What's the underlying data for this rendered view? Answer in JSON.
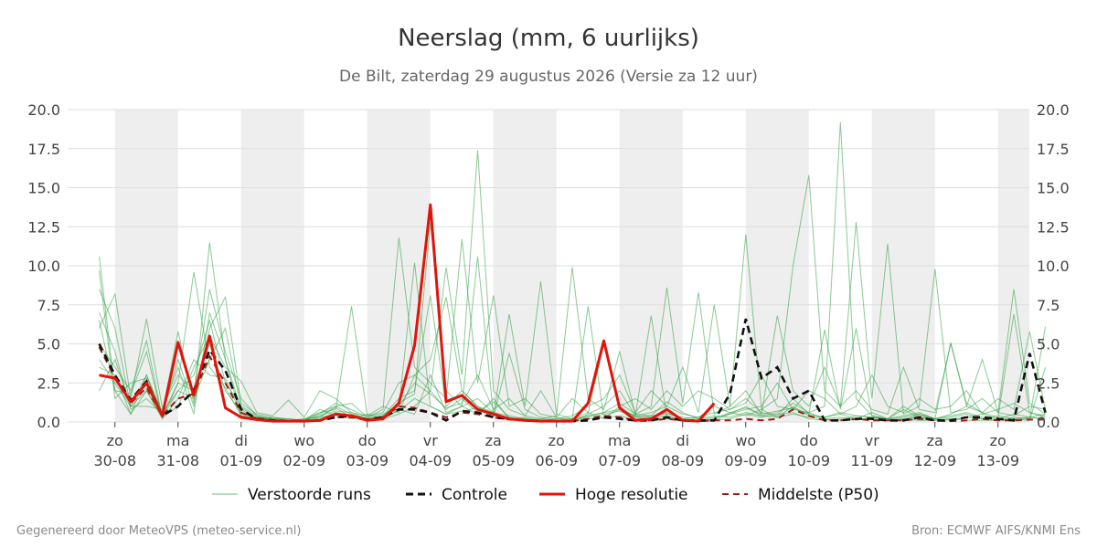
{
  "chart_data": {
    "type": "line",
    "title": "Neerslag (mm, 6 uurlijks)",
    "subtitle": "De Bilt, zaterdag 29 augustus 2026 (Versie za 12 uur)",
    "ylim": [
      0,
      20
    ],
    "yticks": [
      "0.0",
      "2.5",
      "5.0",
      "7.5",
      "10.0",
      "12.5",
      "15.0",
      "17.5",
      "20.0"
    ],
    "xlim": [
      0,
      59.5
    ],
    "step_hours": 6,
    "x_ticks": [
      {
        "day": "zo",
        "date": "30-08"
      },
      {
        "day": "ma",
        "date": "31-08"
      },
      {
        "day": "di",
        "date": "01-09"
      },
      {
        "day": "wo",
        "date": "02-09"
      },
      {
        "day": "do",
        "date": "03-09"
      },
      {
        "day": "vr",
        "date": "04-09"
      },
      {
        "day": "za",
        "date": "05-09"
      },
      {
        "day": "zo",
        "date": "06-09"
      },
      {
        "day": "ma",
        "date": "07-09"
      },
      {
        "day": "di",
        "date": "08-09"
      },
      {
        "day": "wo",
        "date": "09-09"
      },
      {
        "day": "do",
        "date": "10-09"
      },
      {
        "day": "vr",
        "date": "11-09"
      },
      {
        "day": "za",
        "date": "12-09"
      },
      {
        "day": "zo",
        "date": "13-09"
      }
    ],
    "grid": true,
    "legend_position": "bottom",
    "legend": {
      "ensemble": "Verstoorde runs",
      "control": "Controle",
      "hires": "Hoge resolutie",
      "median": "Middelste (P50)"
    },
    "colors": {
      "ensemble": "#2e9e3f",
      "control": "#111111",
      "hires": "#e3120b",
      "median": "#a11b16",
      "night_band": "#eeeeee",
      "grid": "#dddddd"
    },
    "series": {
      "hires": [
        3.0,
        2.8,
        1.3,
        2.5,
        0.4,
        5.1,
        1.7,
        5.5,
        0.9,
        0.3,
        0.15,
        0.05,
        0.05,
        0.05,
        0.1,
        0.5,
        0.4,
        0.1,
        0.2,
        1.2,
        4.9,
        13.9,
        1.3,
        1.7,
        0.8,
        0.5,
        0.2,
        0.1,
        0.05,
        0.05,
        0.05,
        1.2,
        5.2,
        0.9,
        0.1,
        0.2,
        0.8,
        0.1,
        0.05,
        1.2
      ],
      "control": [
        5.0,
        3.0,
        1.4,
        2.6,
        0.4,
        1.0,
        2.0,
        4.6,
        3.3,
        0.8,
        0.2,
        0.1,
        0.05,
        0.05,
        0.1,
        0.3,
        0.4,
        0.15,
        0.3,
        0.8,
        0.8,
        0.6,
        0.1,
        0.7,
        0.6,
        0.3,
        0.2,
        0.1,
        0.05,
        0.05,
        0.05,
        0.1,
        0.3,
        0.2,
        0.1,
        0.1,
        0.3,
        0.1,
        0.1,
        0.1,
        1.8,
        6.6,
        2.8,
        3.5,
        1.5,
        2.0,
        0.1,
        0.1,
        0.2,
        0.2,
        0.1,
        0.1,
        0.3,
        0.1,
        0.1,
        0.3,
        0.3,
        0.2,
        0.1,
        4.4,
        0.6
      ],
      "median": [
        4.8,
        2.8,
        1.2,
        2.2,
        0.4,
        1.5,
        1.8,
        4.2,
        2.5,
        0.6,
        0.2,
        0.1,
        0.05,
        0.05,
        0.1,
        0.3,
        0.3,
        0.1,
        0.3,
        1.0,
        0.9,
        0.6,
        0.3,
        0.6,
        0.5,
        0.3,
        0.15,
        0.1,
        0.05,
        0.05,
        0.05,
        0.2,
        0.4,
        0.3,
        0.1,
        0.1,
        0.2,
        0.1,
        0.05,
        0.1,
        0.1,
        0.2,
        0.1,
        0.2,
        0.8,
        0.4,
        0.1,
        0.1,
        0.2,
        0.1,
        0.1,
        0.1,
        0.2,
        0.1,
        0.05,
        0.1,
        0.2,
        0.1,
        0.1,
        0.15,
        0.15
      ],
      "ensemble": [
        [
          10.6,
          2.0,
          0.5,
          3.0,
          0.6,
          5.8,
          1.2,
          11.5,
          4.0,
          0.8,
          0.2,
          0.1,
          0.1,
          0.0,
          0.3,
          1.0,
          0.5,
          0.2,
          0.4,
          1.5,
          2.0,
          8.1,
          1.0,
          2.0,
          1.0,
          0.6,
          0.2,
          0.1,
          0.1,
          0.0,
          0.0,
          0.5,
          1.0,
          2.0,
          0.4,
          0.3,
          0.6,
          0.2,
          0.1,
          0.3,
          0.5,
          1.0,
          0.4,
          0.6,
          1.2,
          0.6,
          0.2,
          0.1,
          0.4,
          0.3,
          0.2,
          0.1,
          0.5,
          0.2,
          0.1,
          0.3,
          0.5,
          0.2,
          0.1,
          0.3,
          0.5
        ],
        [
          8.5,
          6.0,
          1.0,
          2.0,
          0.3,
          2.5,
          9.6,
          3.5,
          2.2,
          0.4,
          0.3,
          0.1,
          0.0,
          0.2,
          0.6,
          0.8,
          7.4,
          0.4,
          1.0,
          0.6,
          3.0,
          2.0,
          9.9,
          3.0,
          17.4,
          2.0,
          0.8,
          0.4,
          0.2,
          0.4,
          9.9,
          1.5,
          0.8,
          4.5,
          0.5,
          0.4,
          1.3,
          0.6,
          0.2,
          0.1,
          0.5,
          0.8,
          1.0,
          2.5,
          0.8,
          0.6,
          1.0,
          19.2,
          1.5,
          0.4,
          0.2,
          0.8,
          0.3,
          0.2,
          0.5,
          1.0,
          4.0,
          0.6,
          0.4,
          1.0,
          0.8
        ],
        [
          6.0,
          8.2,
          1.5,
          6.6,
          0.9,
          3.0,
          2.0,
          8.5,
          4.5,
          1.5,
          0.4,
          0.2,
          0.1,
          0.1,
          0.5,
          1.2,
          0.8,
          0.3,
          0.8,
          11.8,
          3.5,
          2.5,
          1.5,
          11.7,
          2.5,
          8.1,
          1.0,
          1.5,
          0.5,
          0.3,
          0.1,
          0.4,
          0.6,
          1.2,
          0.5,
          1.0,
          8.6,
          1.2,
          8.3,
          0.5,
          1.0,
          12.0,
          0.8,
          1.5,
          10.0,
          15.8,
          2.0,
          1.0,
          12.8,
          1.5,
          11.4,
          0.5,
          1.0,
          9.8,
          0.6,
          0.8,
          1.5,
          0.6,
          8.5,
          1.2,
          0.5
        ],
        [
          7.0,
          4.5,
          0.8,
          1.5,
          0.5,
          4.0,
          1.0,
          6.0,
          8.0,
          1.2,
          0.5,
          0.3,
          0.2,
          0.1,
          0.4,
          0.9,
          0.3,
          0.2,
          0.3,
          0.9,
          10.2,
          1.0,
          0.5,
          1.0,
          10.6,
          0.4,
          6.9,
          1.0,
          9.0,
          0.5,
          0.2,
          7.4,
          0.3,
          0.8,
          0.4,
          6.8,
          0.3,
          0.2,
          0.3,
          0.6,
          0.8,
          1.5,
          0.6,
          0.4,
          1.5,
          0.5,
          5.9,
          0.8,
          6.0,
          0.4,
          0.2,
          1.0,
          0.4,
          0.2,
          5.1,
          1.0,
          0.6,
          0.3,
          6.9,
          0.6,
          0.3
        ],
        [
          5.0,
          3.5,
          2.0,
          5.2,
          0.3,
          1.0,
          3.5,
          5.5,
          3.5,
          2.6,
          0.6,
          0.4,
          1.4,
          0.3,
          2.0,
          1.5,
          0.6,
          0.4,
          0.6,
          2.5,
          3.0,
          4.0,
          8.0,
          2.0,
          1.0,
          0.3,
          4.4,
          0.8,
          0.3,
          0.2,
          0.4,
          1.0,
          1.5,
          3.0,
          0.6,
          2.0,
          1.0,
          3.5,
          0.6,
          7.5,
          1.0,
          2.0,
          0.5,
          6.8,
          2.0,
          1.0,
          3.5,
          1.0,
          2.0,
          0.8,
          0.5,
          3.5,
          0.8,
          0.6,
          5.0,
          1.2,
          0.6,
          1.5,
          0.8,
          5.8,
          0.8
        ],
        [
          4.0,
          2.5,
          1.0,
          3.0,
          0.4,
          2.5,
          2.0,
          5.0,
          2.0,
          0.6,
          0.2,
          0.1,
          0.1,
          0.2,
          0.3,
          0.5,
          0.3,
          0.1,
          0.2,
          0.5,
          1.0,
          2.0,
          0.8,
          1.5,
          0.6,
          1.3,
          0.3,
          0.1,
          0.2,
          0.1,
          0.0,
          0.2,
          0.3,
          0.4,
          0.1,
          0.2,
          0.2,
          0.1,
          0.0,
          0.1,
          0.2,
          0.5,
          0.3,
          0.5,
          0.6,
          0.2,
          0.1,
          0.2,
          0.1,
          0.3,
          0.1,
          0.2,
          0.1,
          0.1,
          0.2,
          0.1,
          0.1,
          0.1,
          0.2,
          0.1,
          3.5
        ],
        [
          3.5,
          3.0,
          0.5,
          2.0,
          0.2,
          1.5,
          4.0,
          3.0,
          2.8,
          0.5,
          0.3,
          0.2,
          0.1,
          0.1,
          0.2,
          0.6,
          0.4,
          0.2,
          0.3,
          0.7,
          1.5,
          1.0,
          0.5,
          0.7,
          0.9,
          0.6,
          0.2,
          0.2,
          0.1,
          0.1,
          0.1,
          0.3,
          0.5,
          0.7,
          0.3,
          0.4,
          0.5,
          0.3,
          0.2,
          0.4,
          0.3,
          0.6,
          0.4,
          0.3,
          0.5,
          0.3,
          0.2,
          0.3,
          0.2,
          0.2,
          0.1,
          0.2,
          0.3,
          0.1,
          0.2,
          0.3,
          0.2,
          0.1,
          0.3,
          0.2,
          6.1
        ],
        [
          9.7,
          1.5,
          2.5,
          2.8,
          0.6,
          2.0,
          3.0,
          6.5,
          2.5,
          1.0,
          0.4,
          0.2,
          0.2,
          0.1,
          0.6,
          1.0,
          1.2,
          0.3,
          0.5,
          1.0,
          2.5,
          1.8,
          0.9,
          1.2,
          3.0,
          0.8,
          1.5,
          0.4,
          2.0,
          0.3,
          1.5,
          0.6,
          5.0,
          1.0,
          1.5,
          0.8,
          2.0,
          1.0,
          2.0,
          1.5,
          0.8,
          1.2,
          3.0,
          1.0,
          0.8,
          2.0,
          1.5,
          0.5,
          1.0,
          3.0,
          1.0,
          0.6,
          1.5,
          0.8,
          1.0,
          2.0,
          0.5,
          0.8,
          1.2,
          0.6,
          0.4
        ],
        [
          2.0,
          4.0,
          1.0,
          1.0,
          0.8,
          3.5,
          0.5,
          7.0,
          4.0,
          0.3,
          0.2,
          0.3,
          0.1,
          0.1,
          0.8,
          0.4,
          0.2,
          0.5,
          0.2,
          0.8,
          0.5,
          3.0,
          0.6,
          1.0,
          0.5,
          1.5,
          0.2,
          0.3,
          0.1,
          0.2,
          0.2,
          0.6,
          0.2,
          1.0,
          0.3,
          0.2,
          0.4,
          0.1,
          0.1,
          0.2,
          0.6,
          0.4,
          0.8,
          0.3,
          1.0,
          0.4,
          0.3,
          0.5,
          0.2,
          0.6,
          0.2,
          0.3,
          0.5,
          0.2,
          0.3,
          0.5,
          0.2,
          0.4,
          0.2,
          0.3,
          0.2
        ],
        [
          6.5,
          2.0,
          1.8,
          4.5,
          0.3,
          2.0,
          1.5,
          4.0,
          6.0,
          0.9,
          0.3,
          0.2,
          0.1,
          0.1,
          0.4,
          0.7,
          0.6,
          0.2,
          0.4,
          1.2,
          1.8,
          12.8,
          2.0,
          1.0,
          1.5,
          0.6,
          0.4,
          0.2,
          0.1,
          0.1,
          0.2,
          0.4,
          0.6,
          0.8,
          0.4,
          0.6,
          1.0,
          0.5,
          0.3,
          1.0,
          0.6,
          0.9,
          0.5,
          0.7,
          0.9,
          0.5,
          0.3,
          0.6,
          0.4,
          0.3,
          0.2,
          0.4,
          0.6,
          0.2,
          0.4,
          0.6,
          0.3,
          0.2,
          0.5,
          0.3,
          0.2
        ]
      ]
    }
  },
  "footer": {
    "left": "Gegenereerd door MeteoVPS (meteo-service.nl)",
    "right": "Bron: ECMWF AIFS/KNMI Ens"
  }
}
